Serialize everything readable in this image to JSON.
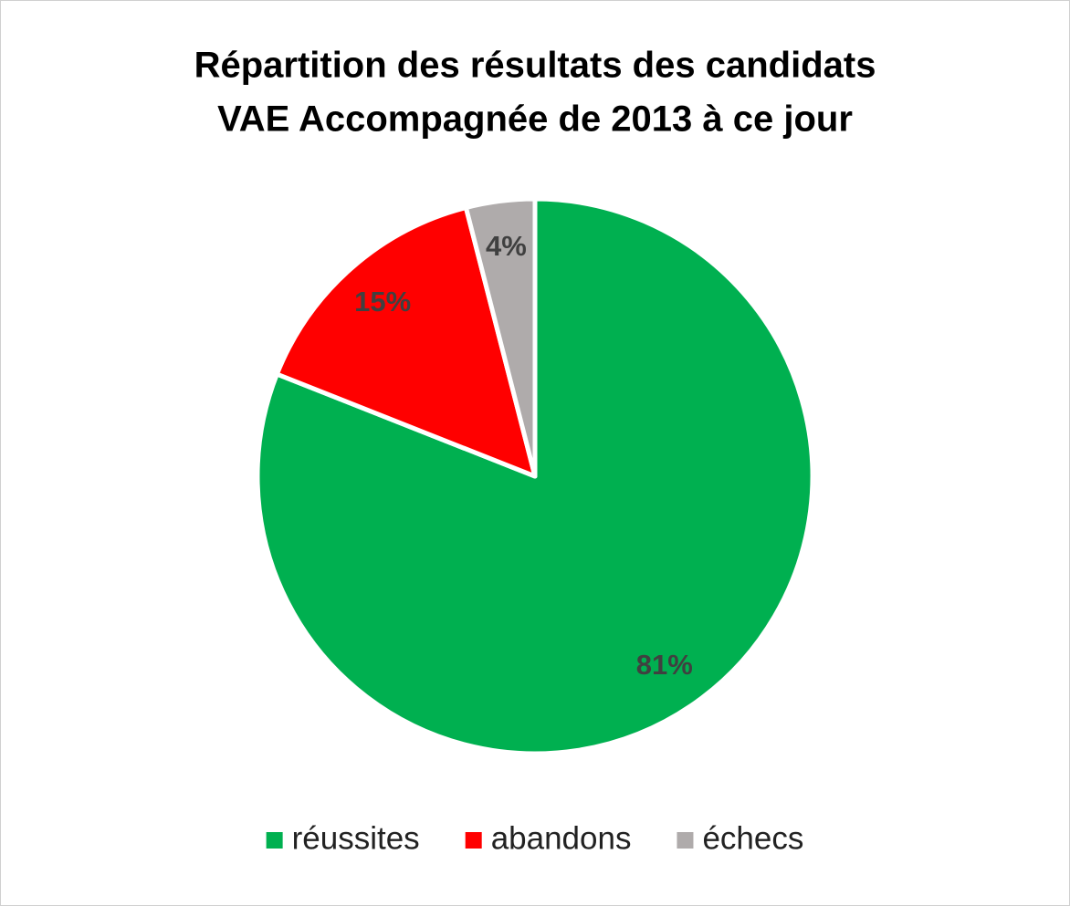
{
  "chart_data": {
    "type": "pie",
    "title": [
      "Répartition des résultats des candidats",
      "VAE Accompagnée de 2013 à ce jour"
    ],
    "categories": [
      "réussites",
      "abandons",
      "échecs"
    ],
    "values": [
      81,
      15,
      4
    ],
    "value_labels": [
      "81%",
      "15%",
      "4%"
    ],
    "colors": [
      "#00b050",
      "#ff0000",
      "#afabab"
    ],
    "legend": "bottom"
  }
}
